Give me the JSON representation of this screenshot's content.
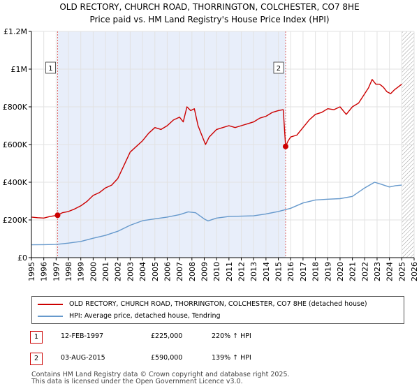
{
  "title_line1": "OLD RECTORY, CHURCH ROAD, THORRINGTON, COLCHESTER, CO7 8HE",
  "title_line2": "Price paid vs. HM Land Registry's House Price Index (HPI)",
  "colors": {
    "property": "#cc0000",
    "hpi": "#6699cc",
    "shade": "#e8eefa",
    "grid": "#e2e2e2"
  },
  "legend": {
    "property_label": "OLD RECTORY, CHURCH ROAD, THORRINGTON, COLCHESTER, CO7 8HE (detached house)",
    "hpi_label": "HPI: Average price, detached house, Tendring"
  },
  "transactions": [
    {
      "num": "1",
      "date": "12-FEB-1997",
      "price": "£225,000",
      "hpi_change": "220% ↑ HPI"
    },
    {
      "num": "2",
      "date": "03-AUG-2015",
      "price": "£590,000",
      "hpi_change": "139% ↑ HPI"
    }
  ],
  "footer": {
    "line1": "Contains HM Land Registry data © Crown copyright and database right 2025.",
    "line2": "This data is licensed under the Open Government Licence v3.0."
  },
  "chart_data": {
    "type": "line",
    "title": "OLD RECTORY, CHURCH ROAD, THORRINGTON, COLCHESTER, CO7 8HE",
    "subtitle": "Price paid vs. HM Land Registry's House Price Index (HPI)",
    "xlim": [
      1995,
      2026
    ],
    "ylim": [
      0,
      1200000
    ],
    "x_ticks": [
      1995,
      1996,
      1997,
      1998,
      1999,
      2000,
      2001,
      2002,
      2003,
      2004,
      2005,
      2006,
      2007,
      2008,
      2009,
      2010,
      2011,
      2012,
      2013,
      2014,
      2015,
      2016,
      2017,
      2018,
      2019,
      2020,
      2021,
      2022,
      2023,
      2024,
      2025,
      2026
    ],
    "y_ticks": [
      {
        "value": 0,
        "label": "£0"
      },
      {
        "value": 200000,
        "label": "£200K"
      },
      {
        "value": 400000,
        "label": "£400K"
      },
      {
        "value": 600000,
        "label": "£600K"
      },
      {
        "value": 800000,
        "label": "£800K"
      },
      {
        "value": 1000000,
        "label": "£1M"
      },
      {
        "value": 1200000,
        "label": "£1.2M"
      }
    ],
    "shaded_ranges": [
      [
        1997.12,
        2015.59
      ]
    ],
    "hatched_range": [
      2025.0,
      2026.0
    ],
    "markers": [
      {
        "label": "1",
        "x": 1997.12,
        "y": 225000
      },
      {
        "label": "2",
        "x": 2015.59,
        "y": 590000
      }
    ],
    "series": [
      {
        "name": "OLD RECTORY, CHURCH ROAD, THORRINGTON, COLCHESTER, CO7 8HE (detached house)",
        "color": "#cc0000",
        "x": [
          1995.0,
          1995.5,
          1996.0,
          1996.5,
          1997.12,
          1997.5,
          1998.0,
          1998.5,
          1999.0,
          1999.5,
          2000.0,
          2000.5,
          2001.0,
          2001.5,
          2002.0,
          2002.5,
          2003.0,
          2003.5,
          2004.0,
          2004.5,
          2005.0,
          2005.5,
          2006.0,
          2006.5,
          2007.0,
          2007.3,
          2007.6,
          2007.9,
          2008.2,
          2008.5,
          2008.8,
          2009.1,
          2009.4,
          2009.7,
          2010.0,
          2010.5,
          2011.0,
          2011.5,
          2012.0,
          2012.5,
          2013.0,
          2013.5,
          2014.0,
          2014.5,
          2015.0,
          2015.4,
          2015.59,
          2015.8,
          2016.0,
          2016.5,
          2017.0,
          2017.5,
          2018.0,
          2018.5,
          2019.0,
          2019.5,
          2020.0,
          2020.5,
          2021.0,
          2021.5,
          2022.0,
          2022.3,
          2022.6,
          2022.9,
          2023.2,
          2023.5,
          2023.8,
          2024.1,
          2024.4,
          2024.7,
          2025.0
        ],
        "y": [
          215000,
          212000,
          210000,
          218000,
          225000,
          238000,
          245000,
          258000,
          275000,
          298000,
          330000,
          345000,
          370000,
          385000,
          420000,
          490000,
          560000,
          590000,
          620000,
          660000,
          690000,
          680000,
          700000,
          730000,
          745000,
          720000,
          800000,
          780000,
          790000,
          700000,
          650000,
          600000,
          640000,
          660000,
          680000,
          690000,
          700000,
          690000,
          700000,
          710000,
          720000,
          740000,
          750000,
          770000,
          780000,
          785000,
          590000,
          620000,
          640000,
          650000,
          690000,
          730000,
          760000,
          770000,
          790000,
          785000,
          800000,
          760000,
          800000,
          820000,
          870000,
          900000,
          945000,
          920000,
          920000,
          905000,
          880000,
          870000,
          890000,
          905000,
          920000
        ]
      },
      {
        "name": "HPI: Average price, detached house, Tendring",
        "color": "#6699cc",
        "x": [
          1995.0,
          1996.0,
          1997.0,
          1998.0,
          1999.0,
          2000.0,
          2001.0,
          2002.0,
          2003.0,
          2004.0,
          2005.0,
          2006.0,
          2007.0,
          2007.7,
          2008.3,
          2009.0,
          2009.3,
          2010.0,
          2011.0,
          2012.0,
          2013.0,
          2014.0,
          2015.0,
          2016.0,
          2017.0,
          2018.0,
          2019.0,
          2020.0,
          2021.0,
          2022.0,
          2022.8,
          2023.3,
          2024.0,
          2024.5,
          2025.0
        ],
        "y": [
          68000,
          69000,
          70000,
          77000,
          86000,
          103000,
          118000,
          140000,
          172000,
          196000,
          206000,
          215000,
          228000,
          243000,
          238000,
          205000,
          195000,
          210000,
          218000,
          220000,
          222000,
          232000,
          245000,
          262000,
          290000,
          306000,
          310000,
          313000,
          325000,
          370000,
          400000,
          390000,
          375000,
          382000,
          385000
        ]
      }
    ]
  }
}
